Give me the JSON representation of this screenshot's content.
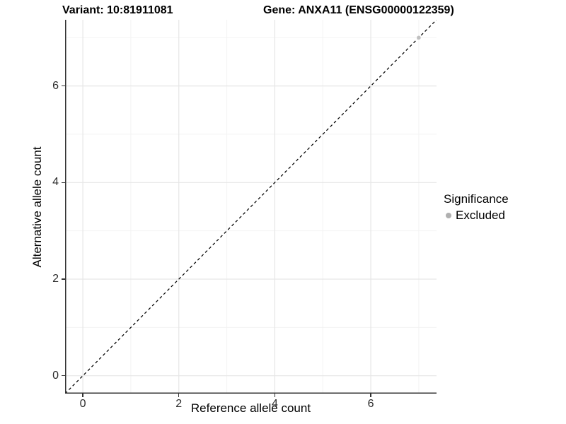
{
  "header": {
    "variant_title": "Variant: 10:81911081",
    "gene_title": "Gene: ANXA11 (ENSG00000122359)"
  },
  "chart_data": {
    "type": "scatter",
    "title_left": "Variant: 10:81911081",
    "title_right": "Gene: ANXA11 (ENSG00000122359)",
    "xlabel": "Reference allele count",
    "ylabel": "Alternative allele count",
    "xlim": [
      -0.37,
      7.37
    ],
    "ylim": [
      -0.37,
      7.37
    ],
    "x_ticks": [
      0,
      2,
      4,
      6
    ],
    "y_ticks": [
      0,
      2,
      4,
      6
    ],
    "x_minor_gridlines": [
      1,
      3,
      5,
      7
    ],
    "y_minor_gridlines": [
      1,
      3,
      5,
      7
    ],
    "grid": "major and minor, light gray on white panel",
    "points": [
      {
        "x": 7,
        "y": 7,
        "significance": "Excluded"
      }
    ],
    "identity_line": {
      "equation": "y = x",
      "style": "dashed",
      "color": "#000000"
    },
    "legend": {
      "title": "Significance",
      "position": "right",
      "items": [
        {
          "label": "Excluded",
          "marker": "circle",
          "color": "#b0b0b0"
        }
      ]
    }
  },
  "colors": {
    "background": "#ffffff",
    "panel_background": "#ffffff",
    "grid_major": "#e6e6e6",
    "grid_minor": "#f2f2f2",
    "axis_line": "#333333",
    "tick_label": "#2b2b2b",
    "title_text": "#000000",
    "point_fill": "#c0c0c0",
    "legend_dot": "#b0b0b0",
    "dashed_line": "#000000"
  }
}
